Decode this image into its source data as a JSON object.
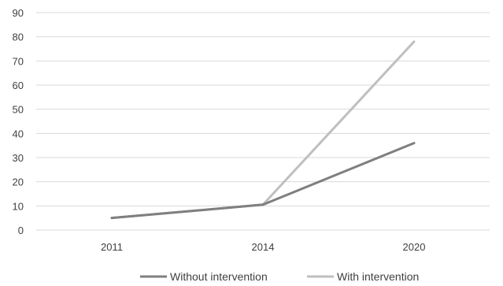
{
  "chart_data": {
    "type": "line",
    "title": "",
    "xlabel": "",
    "ylabel": "",
    "categories": [
      "2011",
      "2014",
      "2020"
    ],
    "ylim": [
      0,
      90
    ],
    "yticks": [
      0,
      10,
      20,
      30,
      40,
      50,
      60,
      70,
      80,
      90
    ],
    "grid": true,
    "legend_position": "bottom",
    "series": [
      {
        "name": "Without intervention",
        "values": [
          5,
          10.5,
          36
        ],
        "color": "#7f7f7f"
      },
      {
        "name": "With intervention",
        "values": [
          5,
          10.5,
          78
        ],
        "color": "#bfbfbf"
      }
    ]
  }
}
